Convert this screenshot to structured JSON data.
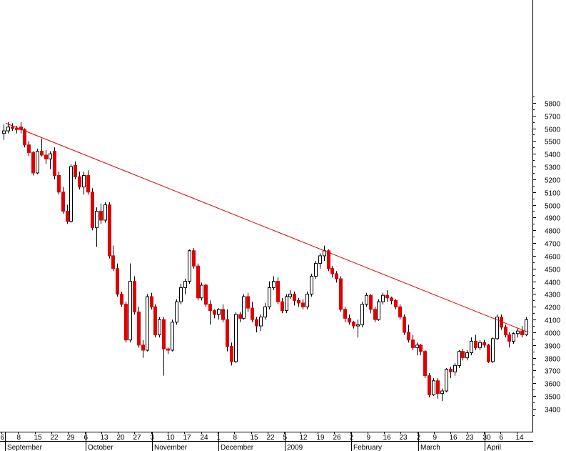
{
  "chart_data": {
    "type": "candlestick",
    "title": "",
    "xlabel": "",
    "ylabel": "",
    "ylim": [
      3300,
      5900
    ],
    "y_ticks": [
      3400,
      3500,
      3600,
      3700,
      3800,
      3900,
      4000,
      4100,
      4200,
      4300,
      4400,
      4500,
      4600,
      4700,
      4800,
      4900,
      5000,
      5100,
      5200,
      5300,
      5400,
      5500,
      5600,
      5700,
      5800
    ],
    "x_ticks": [
      "6",
      "8",
      "15",
      "22",
      "29",
      "6",
      "13",
      "20",
      "27",
      "3",
      "10",
      "17",
      "24",
      "1",
      "8",
      "15",
      "22",
      "5",
      "12",
      "19",
      "26",
      "2",
      "9",
      "16",
      "23",
      "2",
      "9",
      "16",
      "23",
      "30",
      "6",
      "14"
    ],
    "months": [
      "September",
      "October",
      "November",
      "December",
      "2009",
      "February",
      "March",
      "April"
    ],
    "up_color": "#ffffff",
    "down_color": "#e00000",
    "trendline_color": "#e00000",
    "grid": false,
    "trendline": {
      "start": 5640,
      "end": 4000
    },
    "candles": [
      [
        5560,
        5630,
        5510,
        5580
      ],
      [
        5580,
        5650,
        5560,
        5610
      ],
      [
        5610,
        5640,
        5580,
        5600
      ],
      [
        5600,
        5620,
        5560,
        5590
      ],
      [
        5610,
        5650,
        5560,
        5590
      ],
      [
        5590,
        5600,
        5450,
        5470
      ],
      [
        5470,
        5500,
        5380,
        5410
      ],
      [
        5410,
        5420,
        5230,
        5250
      ],
      [
        5250,
        5440,
        5240,
        5420
      ],
      [
        5420,
        5520,
        5380,
        5390
      ],
      [
        5390,
        5430,
        5320,
        5360
      ],
      [
        5360,
        5420,
        5280,
        5400
      ],
      [
        5420,
        5450,
        5200,
        5230
      ],
      [
        5230,
        5260,
        5080,
        5100
      ],
      [
        5100,
        5140,
        4930,
        4950
      ],
      [
        4950,
        5000,
        4850,
        4870
      ],
      [
        4870,
        5320,
        4860,
        5300
      ],
      [
        5310,
        5340,
        5200,
        5220
      ],
      [
        5220,
        5260,
        5120,
        5140
      ],
      [
        5140,
        5260,
        5080,
        5230
      ],
      [
        5230,
        5270,
        5080,
        5100
      ],
      [
        5100,
        5130,
        4800,
        4820
      ],
      [
        4820,
        4980,
        4670,
        4950
      ],
      [
        4950,
        5010,
        4850,
        4880
      ],
      [
        4880,
        5020,
        4860,
        5000
      ],
      [
        5000,
        5020,
        4580,
        4600
      ],
      [
        4600,
        4680,
        4480,
        4500
      ],
      [
        4500,
        4540,
        4280,
        4300
      ],
      [
        4300,
        4320,
        4200,
        4220
      ],
      [
        4220,
        4240,
        3920,
        3940
      ],
      [
        3940,
        4540,
        3920,
        4400
      ],
      [
        4400,
        4440,
        4140,
        4160
      ],
      [
        4160,
        4200,
        3880,
        3900
      ],
      [
        3900,
        3940,
        3800,
        3860
      ],
      [
        3860,
        4300,
        3850,
        4280
      ],
      [
        4280,
        4310,
        4180,
        4200
      ],
      [
        4200,
        4220,
        3960,
        3980
      ],
      [
        3980,
        4120,
        3960,
        4100
      ],
      [
        4100,
        4120,
        3660,
        3870
      ],
      [
        3870,
        3880,
        3830,
        3860
      ],
      [
        3860,
        4100,
        3850,
        4080
      ],
      [
        4080,
        4260,
        4060,
        4240
      ],
      [
        4240,
        4380,
        4220,
        4350
      ],
      [
        4350,
        4420,
        4300,
        4400
      ],
      [
        4400,
        4650,
        4380,
        4640
      ],
      [
        4640,
        4660,
        4500,
        4520
      ],
      [
        4520,
        4540,
        4250,
        4270
      ],
      [
        4270,
        4390,
        4250,
        4370
      ],
      [
        4370,
        4380,
        4200,
        4220
      ],
      [
        4220,
        4250,
        4060,
        4170
      ],
      [
        4170,
        4180,
        4110,
        4140
      ],
      [
        4140,
        4190,
        4100,
        4180
      ],
      [
        4180,
        4220,
        4080,
        4100
      ],
      [
        4100,
        4180,
        3850,
        3890
      ],
      [
        3890,
        3920,
        3740,
        3770
      ],
      [
        3770,
        4160,
        3760,
        4140
      ],
      [
        4140,
        4160,
        4080,
        4110
      ],
      [
        4110,
        4300,
        4100,
        4280
      ],
      [
        4280,
        4310,
        4160,
        4190
      ],
      [
        4190,
        4240,
        4080,
        4100
      ],
      [
        4100,
        4120,
        4000,
        4050
      ],
      [
        4050,
        4140,
        4010,
        4120
      ],
      [
        4120,
        4230,
        4100,
        4200
      ],
      [
        4200,
        4400,
        4180,
        4350
      ],
      [
        4350,
        4440,
        4330,
        4400
      ],
      [
        4400,
        4430,
        4220,
        4240
      ],
      [
        4240,
        4270,
        4150,
        4170
      ],
      [
        4170,
        4300,
        4150,
        4280
      ],
      [
        4280,
        4330,
        4260,
        4300
      ],
      [
        4300,
        4320,
        4210,
        4250
      ],
      [
        4250,
        4270,
        4200,
        4230
      ],
      [
        4230,
        4260,
        4180,
        4200
      ],
      [
        4200,
        4320,
        4180,
        4300
      ],
      [
        4300,
        4460,
        4280,
        4440
      ],
      [
        4440,
        4560,
        4420,
        4540
      ],
      [
        4540,
        4620,
        4500,
        4600
      ],
      [
        4600,
        4680,
        4560,
        4640
      ],
      [
        4640,
        4650,
        4480,
        4500
      ],
      [
        4500,
        4520,
        4430,
        4460
      ],
      [
        4460,
        4480,
        4390,
        4420
      ],
      [
        4420,
        4440,
        4160,
        4180
      ],
      [
        4180,
        4200,
        4080,
        4110
      ],
      [
        4110,
        4140,
        4060,
        4080
      ],
      [
        4080,
        4090,
        4030,
        4050
      ],
      [
        4050,
        4100,
        3960,
        4060
      ],
      [
        4060,
        4240,
        4040,
        4220
      ],
      [
        4220,
        4310,
        4200,
        4290
      ],
      [
        4290,
        4300,
        4150,
        4180
      ],
      [
        4180,
        4200,
        4080,
        4100
      ],
      [
        4100,
        4260,
        4090,
        4240
      ],
      [
        4240,
        4310,
        4220,
        4290
      ],
      [
        4290,
        4330,
        4240,
        4270
      ],
      [
        4270,
        4280,
        4220,
        4250
      ],
      [
        4250,
        4260,
        4180,
        4200
      ],
      [
        4200,
        4220,
        4100,
        4120
      ],
      [
        4120,
        4140,
        3980,
        4000
      ],
      [
        4000,
        4060,
        3920,
        3940
      ],
      [
        3940,
        3980,
        3860,
        3880
      ],
      [
        3880,
        3920,
        3820,
        3900
      ],
      [
        3900,
        3910,
        3820,
        3850
      ],
      [
        3850,
        3860,
        3640,
        3660
      ],
      [
        3660,
        3680,
        3490,
        3510
      ],
      [
        3510,
        3640,
        3500,
        3620
      ],
      [
        3620,
        3640,
        3480,
        3520
      ],
      [
        3520,
        3560,
        3460,
        3540
      ],
      [
        3540,
        3720,
        3530,
        3710
      ],
      [
        3710,
        3730,
        3640,
        3690
      ],
      [
        3690,
        3760,
        3660,
        3740
      ],
      [
        3740,
        3860,
        3720,
        3850
      ],
      [
        3850,
        3870,
        3780,
        3800
      ],
      [
        3800,
        3860,
        3780,
        3840
      ],
      [
        3840,
        3960,
        3820,
        3930
      ],
      [
        3930,
        3980,
        3860,
        3880
      ],
      [
        3880,
        3940,
        3860,
        3920
      ],
      [
        3920,
        3940,
        3880,
        3900
      ],
      [
        3900,
        3910,
        3760,
        3770
      ],
      [
        3770,
        3960,
        3760,
        3950
      ],
      [
        3950,
        4140,
        3940,
        4120
      ],
      [
        4120,
        4140,
        4020,
        4040
      ],
      [
        4040,
        4060,
        3960,
        3980
      ],
      [
        3980,
        4000,
        3880,
        3930
      ],
      [
        3930,
        4000,
        3910,
        3990
      ],
      [
        3990,
        4030,
        3960,
        4010
      ],
      [
        4010,
        4050,
        3960,
        3980
      ],
      [
        3980,
        4120,
        3970,
        4100
      ]
    ]
  }
}
